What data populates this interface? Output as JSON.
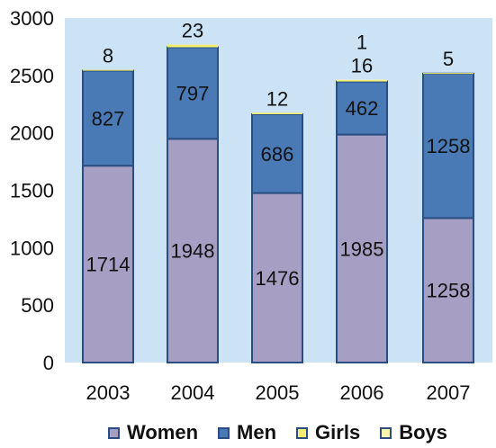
{
  "chart_data": {
    "type": "bar",
    "stacked": true,
    "categories": [
      "2003",
      "2004",
      "2005",
      "2006",
      "2007"
    ],
    "series": [
      {
        "name": "Women",
        "color": "#a69fc3",
        "values": [
          1714,
          1948,
          1476,
          1985,
          1258
        ]
      },
      {
        "name": "Men",
        "color": "#4a7ab6",
        "values": [
          827,
          797,
          686,
          462,
          1258
        ]
      },
      {
        "name": "Girls",
        "color": "#f2ee6e",
        "values": [
          8,
          23,
          12,
          16,
          5
        ]
      },
      {
        "name": "Boys",
        "color": "#f7f4b0",
        "values": [
          0,
          0,
          0,
          1,
          0
        ]
      }
    ],
    "segment_labels": {
      "Women": [
        "1714",
        "1948",
        "1476",
        "1985",
        "1258"
      ],
      "Men": [
        "827",
        "797",
        "686",
        "462",
        "1258"
      ],
      "Girls": [
        "8",
        "23",
        "12",
        "16",
        "5"
      ],
      "Boys": [
        "",
        "",
        "",
        "1",
        ""
      ]
    },
    "ylim": [
      0,
      3000
    ],
    "yticks": [
      0,
      500,
      1000,
      1500,
      2000,
      2500,
      3000
    ],
    "ytick_labels": [
      "0",
      "500",
      "1000",
      "1500",
      "2000",
      "2500",
      "3000"
    ],
    "grid": false,
    "plot_background": "#cbe3f4",
    "bar_border_color": "#2a4e84",
    "legend_position": "bottom"
  }
}
